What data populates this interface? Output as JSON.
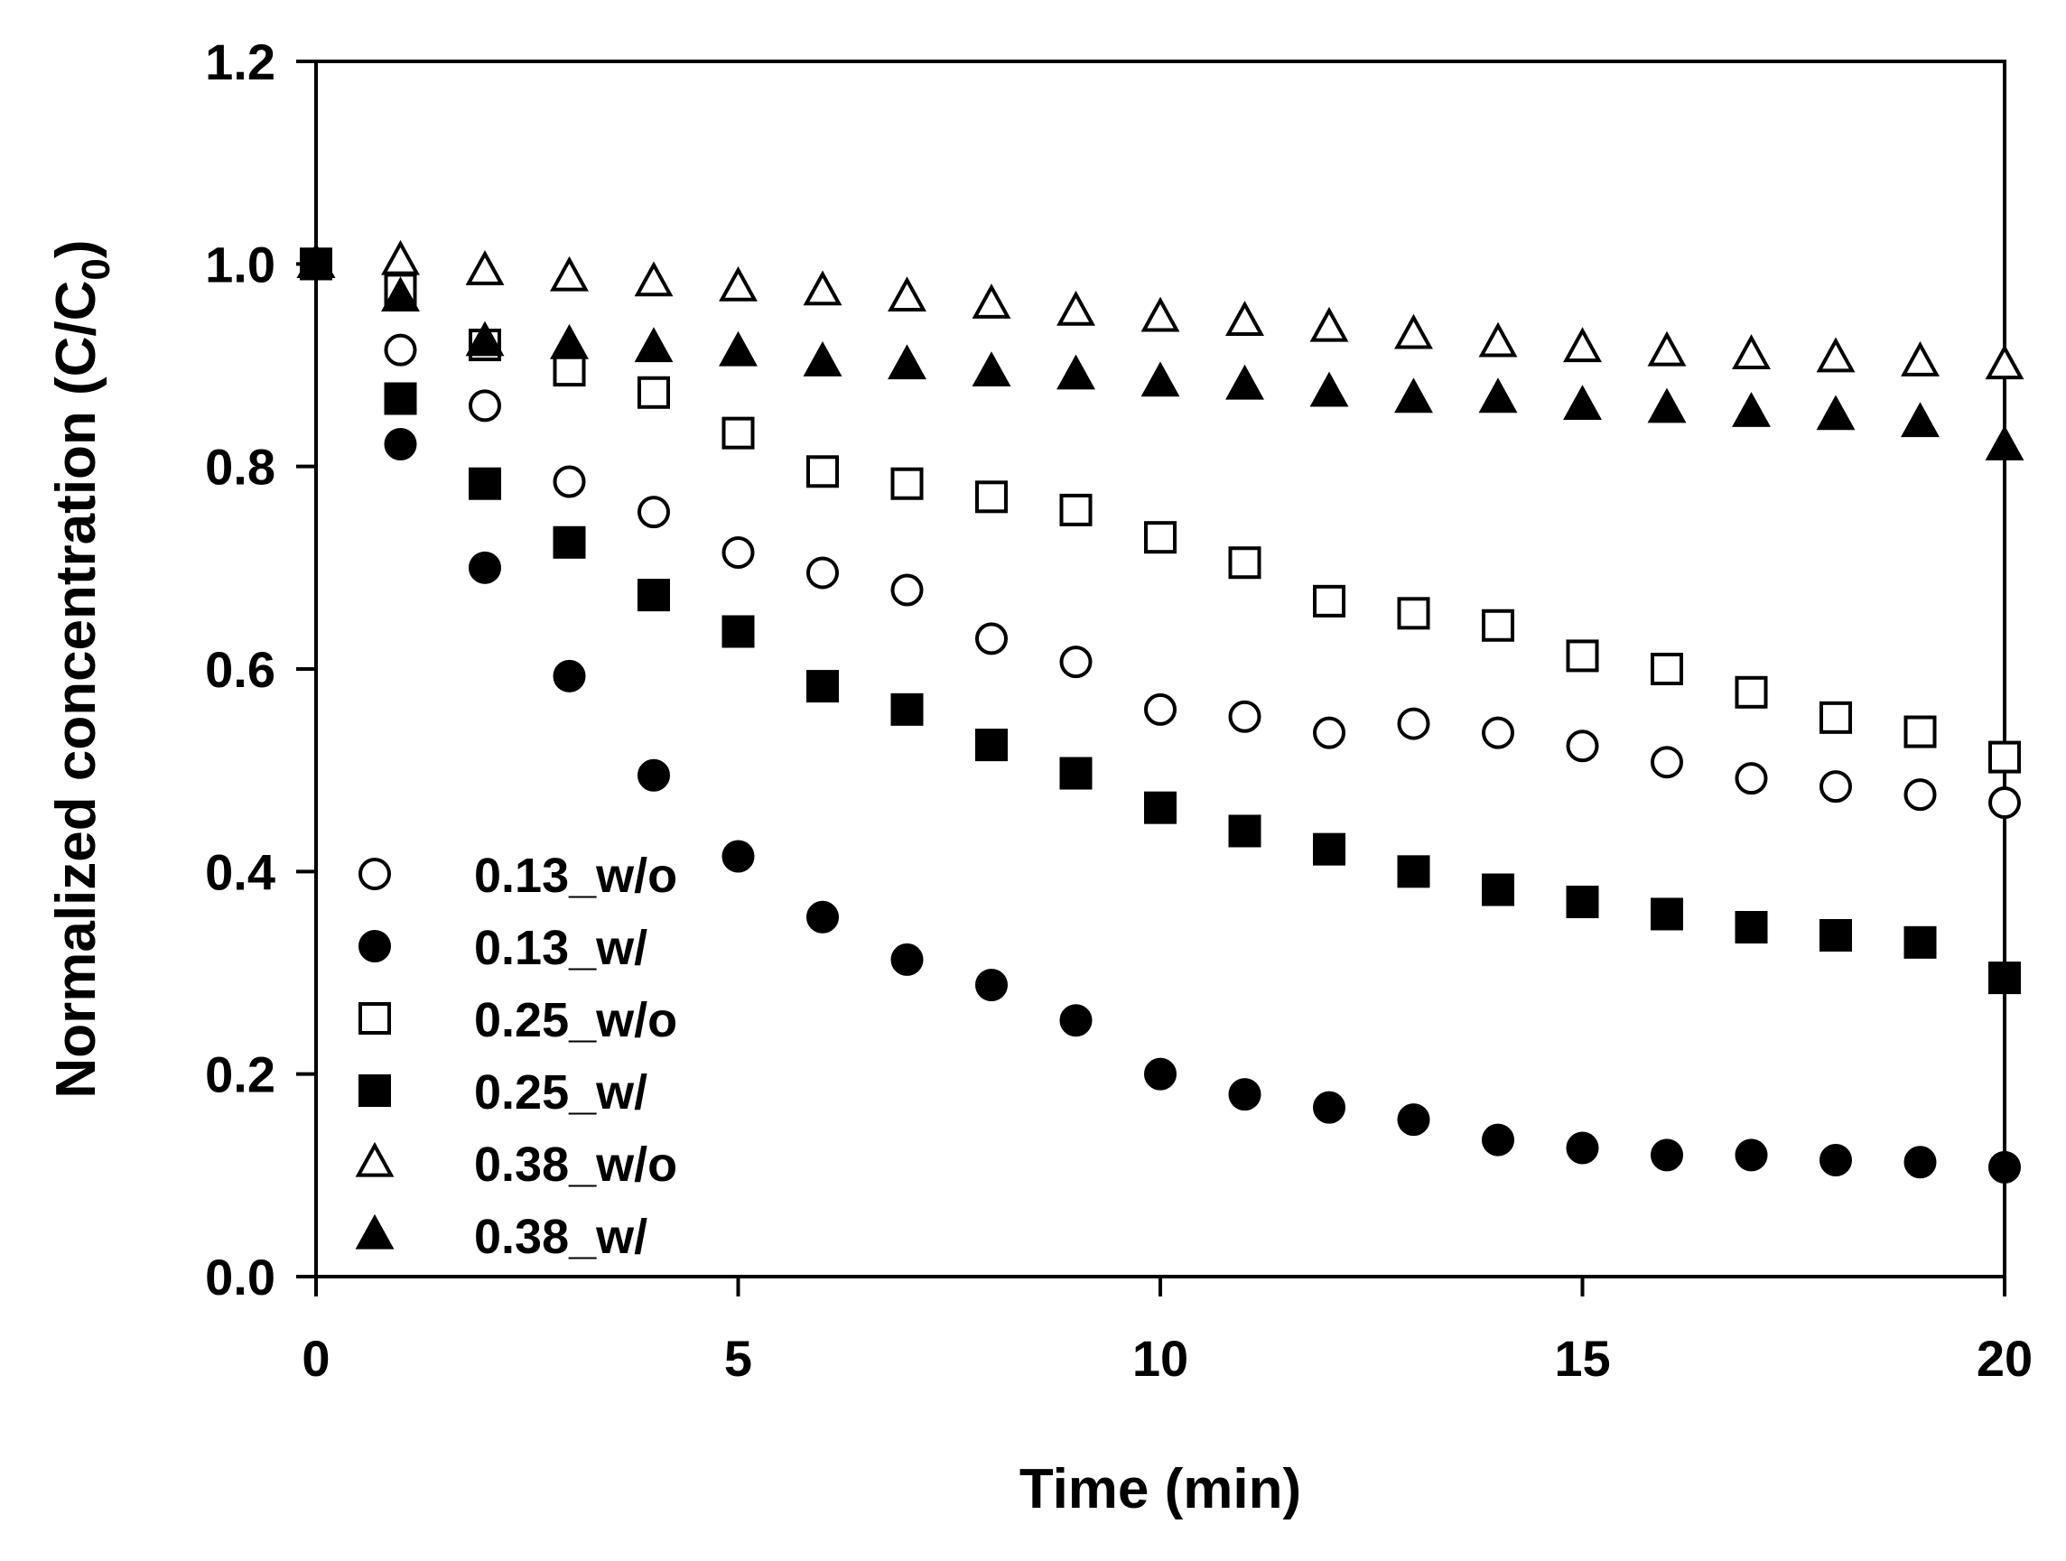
{
  "chart_data": {
    "type": "scatter",
    "title": "",
    "xlabel": "Time (min)",
    "ylabel_main": "Normalized concentration (C/C",
    "ylabel_sub": "0",
    "ylabel_close": ")",
    "xlim": [
      0,
      20
    ],
    "ylim": [
      0,
      1.2
    ],
    "xticks": [
      0,
      5,
      10,
      15,
      20
    ],
    "xtick_labels": [
      "0",
      "5",
      "10",
      "15",
      "20"
    ],
    "yticks": [
      0,
      0.2,
      0.4,
      0.6,
      0.8,
      1.0,
      1.2
    ],
    "ytick_labels": [
      "0.0",
      "0.2",
      "0.4",
      "0.6",
      "0.8",
      "1.0",
      "1.2"
    ],
    "grid": false,
    "legend_position": "lower-left",
    "x": [
      0,
      1,
      2,
      3,
      4,
      5,
      6,
      7,
      8,
      9,
      10,
      11,
      12,
      13,
      14,
      15,
      16,
      17,
      18,
      19,
      20
    ],
    "series": [
      {
        "name": "0.13_w/o",
        "marker": "circle-open",
        "values": [
          1.0,
          0.915,
          0.86,
          0.785,
          0.755,
          0.715,
          0.695,
          0.678,
          0.63,
          0.607,
          0.56,
          0.553,
          0.537,
          0.546,
          0.537,
          0.524,
          0.508,
          0.492,
          0.484,
          0.476,
          0.468
        ]
      },
      {
        "name": "0.13_w/",
        "marker": "circle-filled",
        "values": [
          1.0,
          0.822,
          0.7,
          0.593,
          0.495,
          0.415,
          0.355,
          0.313,
          0.288,
          0.253,
          0.2,
          0.18,
          0.167,
          0.155,
          0.135,
          0.127,
          0.12,
          0.12,
          0.115,
          0.113,
          0.108
        ]
      },
      {
        "name": "0.25_w/o",
        "marker": "square-open",
        "values": [
          1.0,
          0.975,
          0.92,
          0.895,
          0.873,
          0.833,
          0.795,
          0.783,
          0.77,
          0.757,
          0.73,
          0.705,
          0.667,
          0.655,
          0.643,
          0.613,
          0.6,
          0.577,
          0.552,
          0.538,
          0.513
        ]
      },
      {
        "name": "0.25_w/",
        "marker": "square-filled",
        "values": [
          1.0,
          0.867,
          0.783,
          0.725,
          0.673,
          0.637,
          0.583,
          0.56,
          0.525,
          0.497,
          0.463,
          0.44,
          0.422,
          0.4,
          0.382,
          0.37,
          0.358,
          0.345,
          0.337,
          0.33,
          0.295
        ]
      },
      {
        "name": "0.38_w/o",
        "marker": "triangle-open",
        "values": [
          1.0,
          1.003,
          0.993,
          0.987,
          0.982,
          0.977,
          0.973,
          0.967,
          0.96,
          0.953,
          0.947,
          0.943,
          0.937,
          0.93,
          0.922,
          0.917,
          0.913,
          0.91,
          0.907,
          0.903,
          0.9
        ]
      },
      {
        "name": "0.38_w/",
        "marker": "triangle-filled",
        "values": [
          1.0,
          0.967,
          0.923,
          0.92,
          0.917,
          0.913,
          0.903,
          0.9,
          0.893,
          0.89,
          0.883,
          0.88,
          0.873,
          0.867,
          0.867,
          0.86,
          0.857,
          0.853,
          0.85,
          0.843,
          0.82
        ]
      }
    ]
  }
}
